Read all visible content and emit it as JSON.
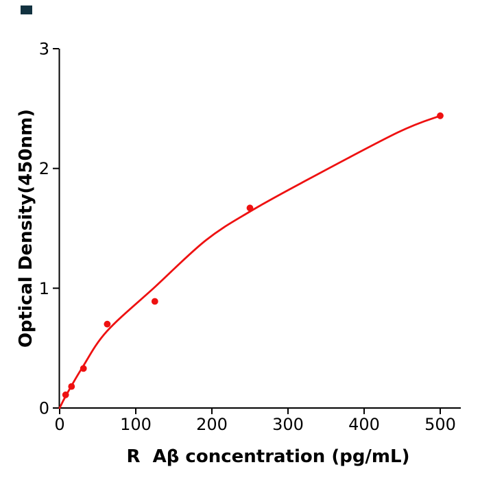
{
  "window": {
    "background": "#ffffff"
  },
  "corner_mark": {
    "color": "#123240"
  },
  "chart_data": {
    "type": "scatter",
    "title": "",
    "xlabel": "R  Aβ concentration (pg/mL)",
    "ylabel": "Optical Density(450nm)",
    "x_ticks": [
      0,
      100,
      200,
      300,
      400,
      500
    ],
    "y_ticks": [
      0,
      1,
      2,
      3
    ],
    "xlim": [
      0,
      527
    ],
    "ylim": [
      0,
      3
    ],
    "grid": false,
    "legend": null,
    "accent_color": "#ee1111",
    "axis_color": "#000000",
    "series": [
      {
        "name": "standard-points",
        "type": "scatter",
        "x": [
          7.8,
          15.6,
          31.25,
          62.5,
          125,
          250,
          500
        ],
        "y": [
          0.11,
          0.18,
          0.33,
          0.7,
          0.89,
          1.67,
          2.44
        ]
      },
      {
        "name": "fitted-curve",
        "type": "line",
        "x": [
          0,
          8,
          30,
          62,
          125,
          192,
          250,
          318,
          444,
          500
        ],
        "y": [
          0,
          0.1,
          0.34,
          0.64,
          1.01,
          1.4,
          1.64,
          1.88,
          2.3,
          2.44
        ]
      }
    ]
  }
}
